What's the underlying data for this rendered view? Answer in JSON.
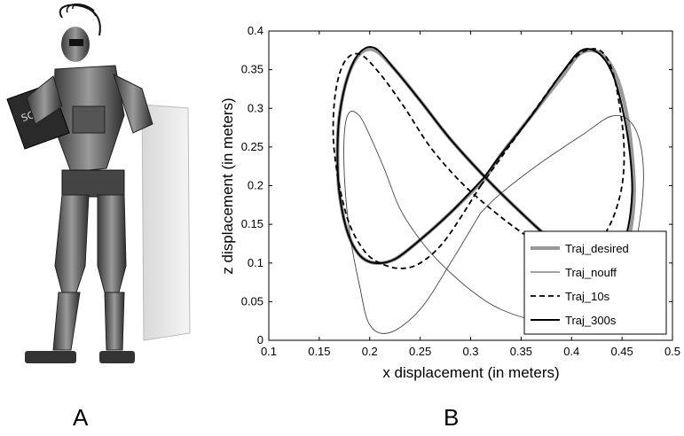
{
  "panels": {
    "left_label": "A",
    "right_label": "B"
  },
  "robot_image": {
    "description_icon": "humanoid-robot-icon",
    "book_text": "SCIENCE"
  },
  "chart_data": {
    "type": "line",
    "title": "",
    "xlabel": "x displacement (in meters)",
    "ylabel": "z displacement (in meters)",
    "xlim": [
      0.1,
      0.5
    ],
    "ylim": [
      0,
      0.4
    ],
    "xticks": [
      0.1,
      0.15,
      0.2,
      0.25,
      0.3,
      0.35,
      0.4,
      0.45,
      0.5
    ],
    "yticks": [
      0,
      0.05,
      0.1,
      0.15,
      0.2,
      0.25,
      0.3,
      0.35,
      0.4
    ],
    "xtick_labels": [
      "0.1",
      "0.15",
      "0.2",
      "0.25",
      "0.3",
      "0.35",
      "0.4",
      "0.45",
      "0.5"
    ],
    "ytick_labels": [
      "0",
      "0.05",
      "0.1",
      "0.15",
      "0.2",
      "0.25",
      "0.3",
      "0.35",
      "0.4"
    ],
    "grid": false,
    "legend_position": "bottom-right",
    "series": [
      {
        "name": "Traj_desired",
        "color": "#999999",
        "style": "solid-thick",
        "x": [
          0.315,
          0.33,
          0.36,
          0.39,
          0.41,
          0.43,
          0.445,
          0.455,
          0.46,
          0.462,
          0.458,
          0.448,
          0.432,
          0.41,
          0.38,
          0.35,
          0.315,
          0.28,
          0.25,
          0.225,
          0.205,
          0.19,
          0.178,
          0.17,
          0.168,
          0.17,
          0.178,
          0.19,
          0.205,
          0.225,
          0.25,
          0.28,
          0.315
        ],
        "y": [
          0.21,
          0.24,
          0.29,
          0.34,
          0.372,
          0.37,
          0.34,
          0.29,
          0.24,
          0.19,
          0.14,
          0.11,
          0.1,
          0.105,
          0.13,
          0.165,
          0.21,
          0.26,
          0.31,
          0.35,
          0.375,
          0.37,
          0.34,
          0.29,
          0.24,
          0.19,
          0.14,
          0.11,
          0.1,
          0.105,
          0.13,
          0.165,
          0.21
        ]
      },
      {
        "name": "Traj_nouff",
        "color": "#444444",
        "style": "solid-thin",
        "x": [
          0.31,
          0.33,
          0.37,
          0.41,
          0.44,
          0.46,
          0.47,
          0.47,
          0.46,
          0.44,
          0.41,
          0.37,
          0.33,
          0.3,
          0.27,
          0.25,
          0.23,
          0.215,
          0.2,
          0.19,
          0.18,
          0.175,
          0.175,
          0.18,
          0.19,
          0.2,
          0.22,
          0.25,
          0.28,
          0.31
        ],
        "y": [
          0.165,
          0.19,
          0.23,
          0.265,
          0.29,
          0.28,
          0.24,
          0.18,
          0.11,
          0.06,
          0.03,
          0.025,
          0.04,
          0.065,
          0.1,
          0.13,
          0.17,
          0.22,
          0.265,
          0.29,
          0.295,
          0.27,
          0.21,
          0.14,
          0.07,
          0.02,
          0.01,
          0.04,
          0.1,
          0.165
        ]
      },
      {
        "name": "Traj_10s",
        "color": "#000000",
        "style": "dashed",
        "x": [
          0.31,
          0.335,
          0.365,
          0.39,
          0.41,
          0.428,
          0.44,
          0.448,
          0.452,
          0.45,
          0.44,
          0.425,
          0.405,
          0.38,
          0.35,
          0.32,
          0.29,
          0.26,
          0.235,
          0.21,
          0.19,
          0.175,
          0.166,
          0.164,
          0.17,
          0.18,
          0.195,
          0.21,
          0.23,
          0.25,
          0.275,
          0.31
        ],
        "y": [
          0.2,
          0.245,
          0.3,
          0.345,
          0.372,
          0.375,
          0.35,
          0.3,
          0.25,
          0.2,
          0.155,
          0.125,
          0.11,
          0.115,
          0.14,
          0.17,
          0.205,
          0.25,
          0.3,
          0.345,
          0.37,
          0.36,
          0.32,
          0.26,
          0.2,
          0.15,
          0.115,
          0.1,
          0.093,
          0.1,
          0.13,
          0.2
        ]
      },
      {
        "name": "Traj_300s",
        "color": "#000000",
        "style": "solid",
        "x": [
          0.313,
          0.33,
          0.36,
          0.39,
          0.41,
          0.428,
          0.442,
          0.452,
          0.458,
          0.46,
          0.455,
          0.445,
          0.43,
          0.41,
          0.38,
          0.35,
          0.315,
          0.28,
          0.25,
          0.225,
          0.205,
          0.19,
          0.178,
          0.17,
          0.168,
          0.17,
          0.178,
          0.19,
          0.205,
          0.225,
          0.25,
          0.28,
          0.313
        ],
        "y": [
          0.21,
          0.24,
          0.29,
          0.345,
          0.375,
          0.37,
          0.34,
          0.29,
          0.24,
          0.19,
          0.14,
          0.11,
          0.1,
          0.105,
          0.13,
          0.165,
          0.21,
          0.26,
          0.31,
          0.35,
          0.378,
          0.372,
          0.34,
          0.29,
          0.24,
          0.19,
          0.14,
          0.11,
          0.1,
          0.105,
          0.13,
          0.165,
          0.21
        ]
      }
    ]
  }
}
